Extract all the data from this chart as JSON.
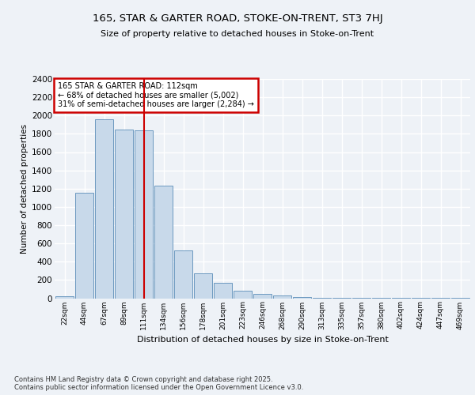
{
  "title": "165, STAR & GARTER ROAD, STOKE-ON-TRENT, ST3 7HJ",
  "subtitle": "Size of property relative to detached houses in Stoke-on-Trent",
  "xlabel": "Distribution of detached houses by size in Stoke-on-Trent",
  "ylabel": "Number of detached properties",
  "categories": [
    "22sqm",
    "44sqm",
    "67sqm",
    "89sqm",
    "111sqm",
    "134sqm",
    "156sqm",
    "178sqm",
    "201sqm",
    "223sqm",
    "246sqm",
    "268sqm",
    "290sqm",
    "313sqm",
    "335sqm",
    "357sqm",
    "380sqm",
    "402sqm",
    "424sqm",
    "447sqm",
    "469sqm"
  ],
  "values": [
    25,
    1155,
    1960,
    1845,
    1840,
    1230,
    520,
    275,
    165,
    85,
    45,
    30,
    10,
    5,
    3,
    3,
    2,
    1,
    1,
    1,
    1
  ],
  "bar_color": "#c8d9ea",
  "bar_edge_color": "#5b8db8",
  "highlight_index": 4,
  "highlight_line_color": "#cc0000",
  "annotation_text": "165 STAR & GARTER ROAD: 112sqm\n← 68% of detached houses are smaller (5,002)\n31% of semi-detached houses are larger (2,284) →",
  "annotation_box_color": "#ffffff",
  "annotation_box_edge": "#cc0000",
  "background_color": "#eef2f7",
  "grid_color": "#ffffff",
  "footer_text": "Contains HM Land Registry data © Crown copyright and database right 2025.\nContains public sector information licensed under the Open Government Licence v3.0.",
  "ylim": [
    0,
    2400
  ],
  "yticks": [
    0,
    200,
    400,
    600,
    800,
    1000,
    1200,
    1400,
    1600,
    1800,
    2000,
    2200,
    2400
  ]
}
